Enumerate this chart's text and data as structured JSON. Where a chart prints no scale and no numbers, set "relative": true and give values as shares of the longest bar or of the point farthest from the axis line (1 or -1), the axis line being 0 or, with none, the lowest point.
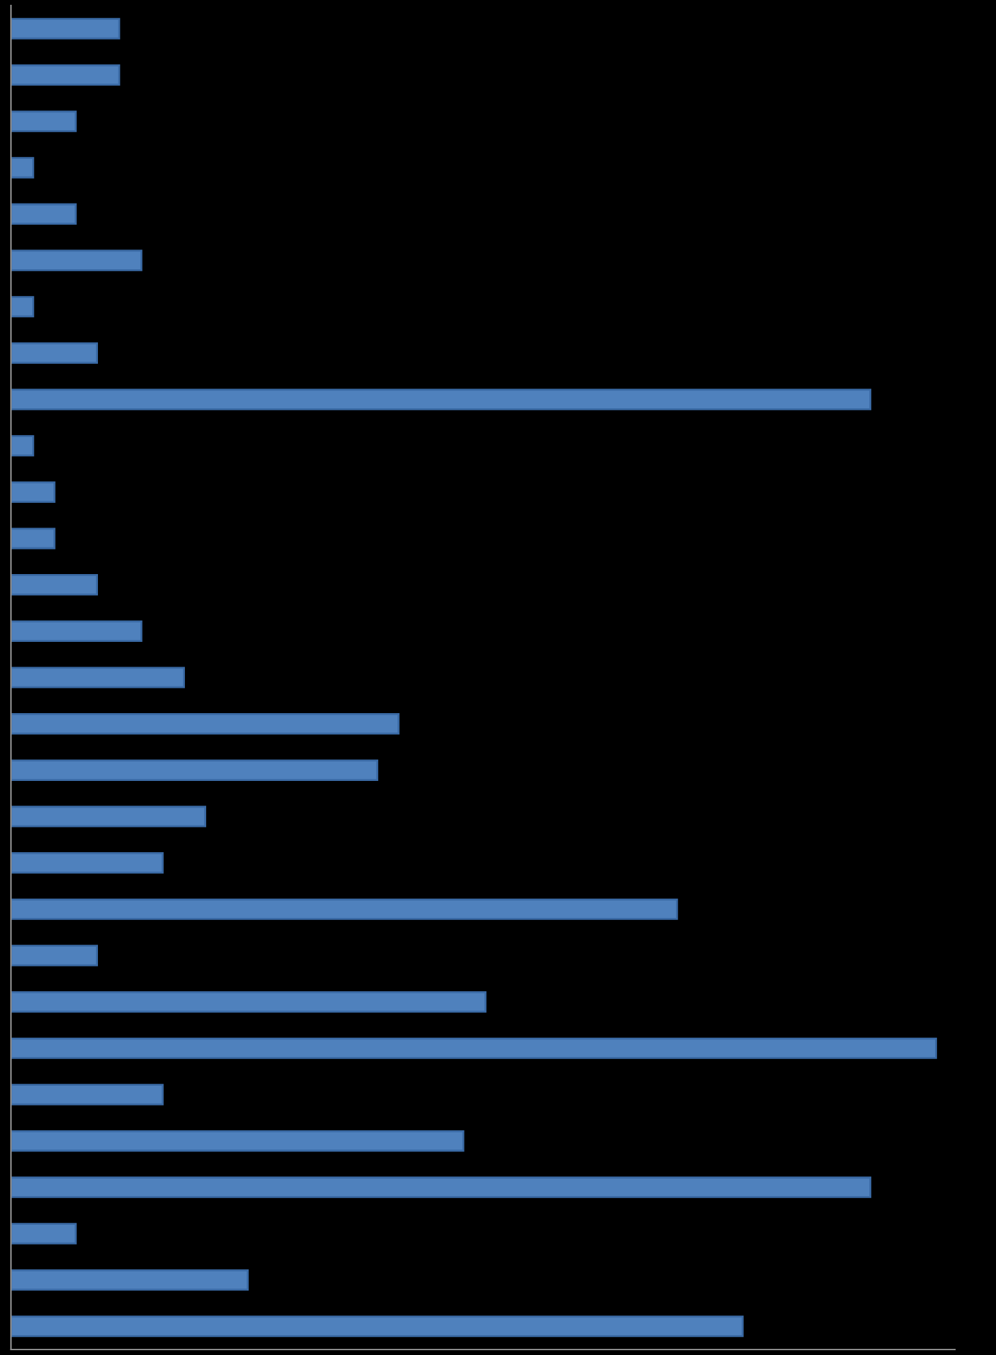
{
  "chart_data": {
    "type": "bar",
    "orientation": "horizontal",
    "relative": true,
    "color": "#4f81bd",
    "categories": [
      null,
      null,
      null,
      null,
      null,
      null,
      null,
      null,
      null,
      null,
      null,
      null,
      null,
      null,
      null,
      null,
      null,
      null,
      null,
      null,
      null,
      null,
      null,
      null,
      null,
      null,
      null,
      null,
      null
    ],
    "values": [
      0.117,
      0.117,
      0.07,
      0.024,
      0.07,
      0.141,
      0.024,
      0.093,
      0.929,
      0.024,
      0.047,
      0.047,
      0.093,
      0.141,
      0.187,
      0.419,
      0.396,
      0.21,
      0.164,
      0.72,
      0.093,
      0.513,
      1,
      0.164,
      0.489,
      0.929,
      0.07,
      0.256,
      0.791
    ],
    "grid": false,
    "legend": false
  }
}
